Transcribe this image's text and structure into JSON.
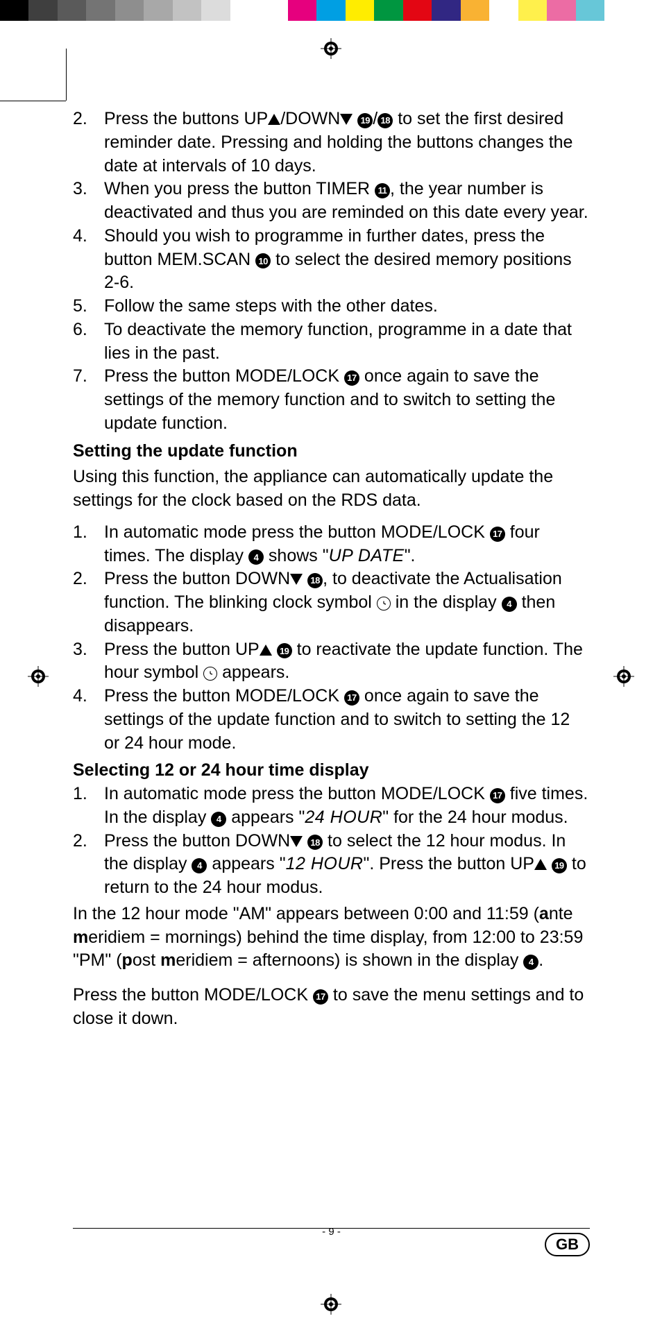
{
  "colorbar": [
    "#000000",
    "#3f3f3f",
    "#5a5a5a",
    "#747474",
    "#8e8e8e",
    "#a8a8a8",
    "#c2c2c2",
    "#dcdcdc",
    "#ffffff",
    "#ffffff",
    "#e6007e",
    "#009fe3",
    "#ffed00",
    "#009640",
    "#e30613",
    "#312783",
    "#f9b233",
    "#ffffff",
    "#fff04c",
    "#ec6ca4",
    "#67c7d8",
    "#ffffff",
    "#ffffff"
  ],
  "list1": {
    "i2": {
      "n": "2.",
      "a": "Press the buttons UP",
      "b": "/DOWN",
      "c19": "19",
      "slash": "/",
      "c18": "18",
      "d": " to set the first desired reminder date. Pressing and holding the buttons changes the date at intervals of 10 days."
    },
    "i3": {
      "n": "3.",
      "a": "When you press the button TIMER ",
      "c11": "11",
      "b": ", the year number is deactivated and thus you are reminded on this date every year."
    },
    "i4": {
      "n": "4.",
      "a": "Should you wish to programme in further dates, press the button MEM.SCAN ",
      "c10": "10",
      "b": " to select the desired memory positions 2-6."
    },
    "i5": {
      "n": "5.",
      "a": "Follow the same steps with the other dates."
    },
    "i6": {
      "n": "6.",
      "a": "To deactivate the memory function, programme in a date that lies in the past."
    },
    "i7": {
      "n": "7.",
      "a": "Press the button MODE/LOCK ",
      "c17": "17",
      "b": " once again to save the settings of the memory function and to switch to setting the update function."
    }
  },
  "h1": "Setting the update function",
  "p1": "Using this function, the appliance can automatically update the settings for the clock based on the RDS data.",
  "list2": {
    "i1": {
      "n": "1.",
      "a": "In automatic mode press the button MODE/LOCK ",
      "c17": "17",
      "b": " four times. The display ",
      "c4": "4",
      "c": " shows \"",
      "seg": "UP DATE",
      "d": "\"."
    },
    "i2": {
      "n": "2.",
      "a": "Press the button DOWN",
      "c18": "18",
      "b": ", to deactivate the Actualisation function. The blinking clock symbol ",
      "c": " in the display ",
      "c4": "4",
      "d": " then disappears."
    },
    "i3": {
      "n": "3.",
      "a": "Press the button UP",
      "c19": "19",
      "b": " to reactivate the update function. The hour symbol ",
      "c": " appears."
    },
    "i4": {
      "n": "4.",
      "a": "Press the button MODE/LOCK ",
      "c17": "17",
      "b": " once again to save the settings of the update function and to switch to setting the 12 or 24 hour mode."
    }
  },
  "h2": "Selecting 12 or 24 hour time display",
  "list3": {
    "i1": {
      "n": "1.",
      "a": "In automatic mode press the button MODE/LOCK ",
      "c17": "17",
      "b": " five times. In the display ",
      "c4": "4",
      "c": " appears \"",
      "seg": "24 HOUR",
      "d": "\" for the 24 hour modus."
    },
    "i2": {
      "n": "2.",
      "a": "Press the button DOWN",
      "c18": "18",
      "b": " to select the 12 hour modus. In the display ",
      "c4": "4",
      "c": " appears \"",
      "seg": "12 HOUR",
      "d": "\". Press the button UP",
      "c19": "19",
      "e": " to return to the 24 hour modus."
    }
  },
  "p2a": "In the 12 hour mode \"AM\" appears between 0:00 and 11:59 (",
  "p2b1": "a",
  "p2c": "nte ",
  "p2b2": "m",
  "p2d": "eridiem = mornings) behind the time display, from 12:00 to 23:59 \"PM\" (",
  "p2b3": "p",
  "p2e": "ost ",
  "p2b4": "m",
  "p2f": "eridiem = afternoons) is shown in the display ",
  "p2c4": "4",
  "p2g": ".",
  "p3a": "Press the button MODE/LOCK ",
  "p3c17": "17",
  "p3b": " to save the menu settings and to close it down.",
  "footer": {
    "page": "- 9 -",
    "gb": "GB"
  }
}
